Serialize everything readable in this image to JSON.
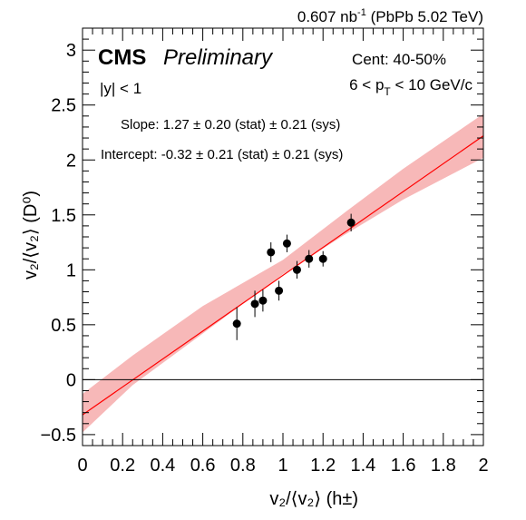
{
  "header": {
    "lumi_value": "0.607 nb",
    "lumi_sup": "-1",
    "lumi_system": "(PbPb 5.02 TeV)"
  },
  "labels": {
    "cms": "CMS",
    "preliminary": "Preliminary",
    "rapidity_prefix": "|y",
    "rapidity_suffix": "| < 1",
    "centrality": "Cent: 40-50%",
    "pt_prefix": "6 < p",
    "pt_sub": "T",
    "pt_suffix": " < 10 GeV/c",
    "slope": "Slope: 1.27 ± 0.20 (stat) ± 0.21 (sys)",
    "intercept": "Intercept: -0.32 ± 0.21 (stat) ± 0.21 (sys)"
  },
  "axes": {
    "ylabel": "v₂/⟨v₂⟩ (D⁰)",
    "xlabel": "v₂/⟨v₂⟩ (h±)"
  },
  "colors": {
    "fit_line": "#ff0000",
    "band": "#f7b8b8",
    "points": "#000000"
  },
  "chart_data": {
    "type": "scatter",
    "xlim": [
      0,
      2
    ],
    "ylim": [
      -0.6,
      3.2
    ],
    "xticks": [
      "0",
      "0.2",
      "0.4",
      "0.6",
      "0.8",
      "1",
      "1.2",
      "1.4",
      "1.6",
      "1.8",
      "2"
    ],
    "yticks": [
      "−0.5",
      "0",
      "0.5",
      "1",
      "1.5",
      "2",
      "2.5",
      "3"
    ],
    "ytick_values": [
      -0.5,
      0,
      0.5,
      1,
      1.5,
      2,
      2.5,
      3
    ],
    "grid": false,
    "series": [
      {
        "points": [
          {
            "x": 0.77,
            "y": 0.51,
            "err": 0.15
          },
          {
            "x": 0.86,
            "y": 0.69,
            "err": 0.12
          },
          {
            "x": 0.9,
            "y": 0.72,
            "err": 0.1
          },
          {
            "x": 0.94,
            "y": 1.16,
            "err": 0.09
          },
          {
            "x": 0.98,
            "y": 0.81,
            "err": 0.09
          },
          {
            "x": 1.02,
            "y": 1.24,
            "err": 0.08
          },
          {
            "x": 1.07,
            "y": 1.0,
            "err": 0.08
          },
          {
            "x": 1.13,
            "y": 1.1,
            "err": 0.08
          },
          {
            "x": 1.2,
            "y": 1.1,
            "err": 0.07
          },
          {
            "x": 1.34,
            "y": 1.43,
            "err": 0.08
          }
        ]
      }
    ],
    "fit": {
      "slope": 1.27,
      "intercept": -0.32
    },
    "band": {
      "x": [
        0,
        0.25,
        0.6,
        1.0,
        1.3,
        1.6,
        2.0
      ],
      "lower": [
        -0.48,
        -0.05,
        0.42,
        0.96,
        1.31,
        1.64,
        2.02
      ],
      "upper": [
        -0.13,
        0.22,
        0.67,
        1.09,
        1.51,
        1.92,
        2.42
      ]
    }
  }
}
